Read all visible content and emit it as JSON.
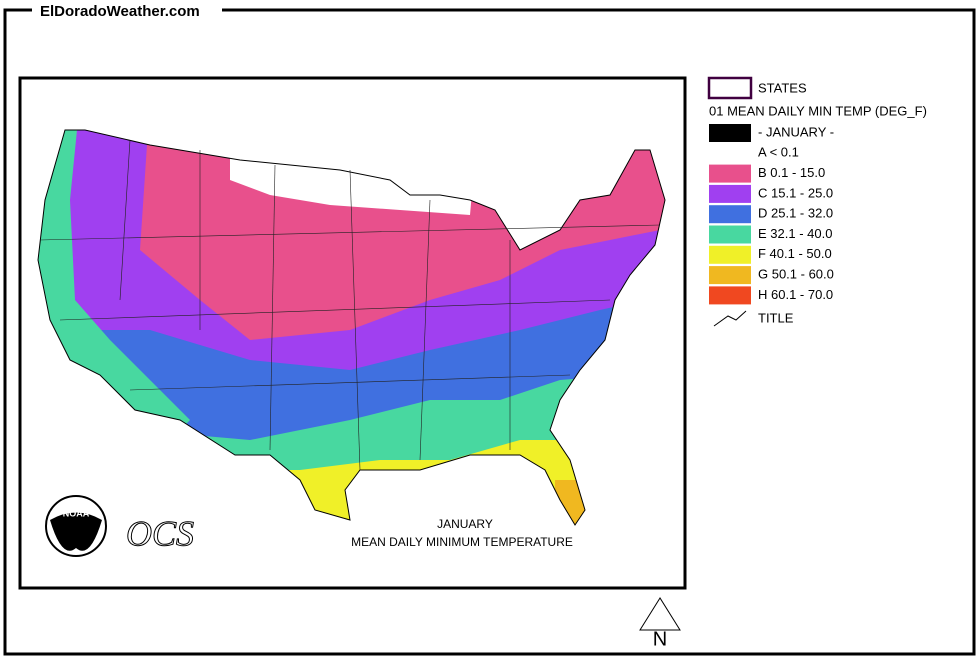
{
  "header": {
    "site": "ElDoradoWeather.com"
  },
  "legend": {
    "states_label": "STATES",
    "variable": "01 MEAN DAILY MIN TEMP (DEG_F)",
    "items": [
      {
        "label": "- JANUARY -",
        "color": "#000000"
      },
      {
        "label": "A < 0.1",
        "color": null
      },
      {
        "label": "B 0.1 - 15.0",
        "color": "#e8508c"
      },
      {
        "label": "C 15.1 - 25.0",
        "color": "#a040f0"
      },
      {
        "label": "D 25.1 - 32.0",
        "color": "#4070e0"
      },
      {
        "label": "E 32.1 - 40.0",
        "color": "#48d8a0"
      },
      {
        "label": "F 40.1 - 50.0",
        "color": "#f0f028"
      },
      {
        "label": "G 50.1 - 60.0",
        "color": "#f0b820"
      },
      {
        "label": "H 60.1 - 70.0",
        "color": "#f04820"
      }
    ],
    "title_label": "TITLE"
  },
  "map": {
    "caption_month": "JANUARY",
    "caption": "MEAN DAILY MINIMUM TEMPERATURE",
    "logo": "NOAA",
    "office": "OCS",
    "north": "N"
  }
}
